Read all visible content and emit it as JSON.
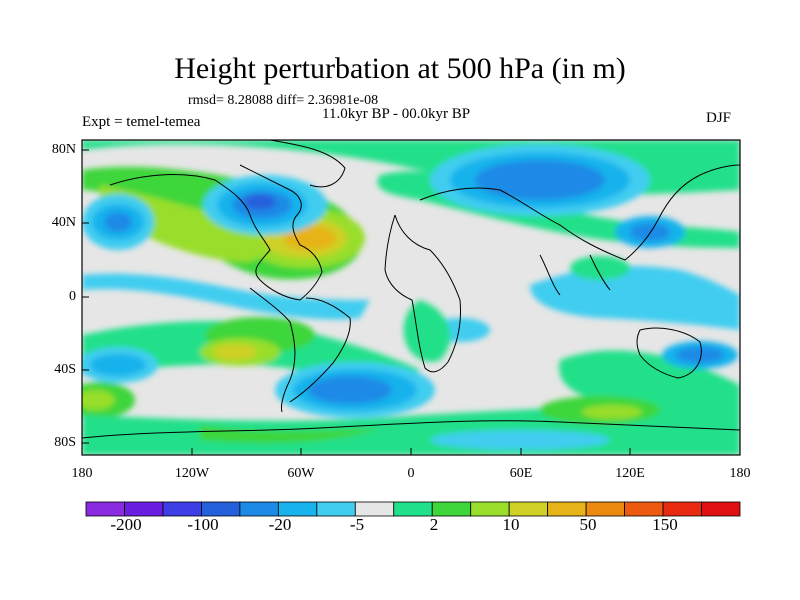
{
  "title": "Height perturbation at 500 hPa (in m)",
  "stats": "rmsd= 8.28088 diff= 2.36981e-08",
  "period": "11.0kyr BP - 00.0kyr BP",
  "experiment": "Expt = temel-temea",
  "season": "DJF",
  "map": {
    "lat_ticks": [
      "80N",
      "40N",
      "0",
      "40S",
      "80S"
    ],
    "lon_ticks": [
      "180",
      "120W",
      "60W",
      "0",
      "60E",
      "120E",
      "180"
    ]
  },
  "colorbar": {
    "colors": [
      "#8a2be2",
      "#6a1ee0",
      "#3d3ee6",
      "#2560dc",
      "#1c8ae6",
      "#18b2ec",
      "#3fcdf0",
      "#e6e6e6",
      "#20e08a",
      "#3ed63a",
      "#98de2a",
      "#cfd028",
      "#e6b419",
      "#ec8a10",
      "#ec5a10",
      "#e82a10",
      "#e01010"
    ],
    "labels": [
      "-200",
      "-100",
      "-20",
      "-5",
      "2",
      "10",
      "50",
      "150"
    ]
  }
}
